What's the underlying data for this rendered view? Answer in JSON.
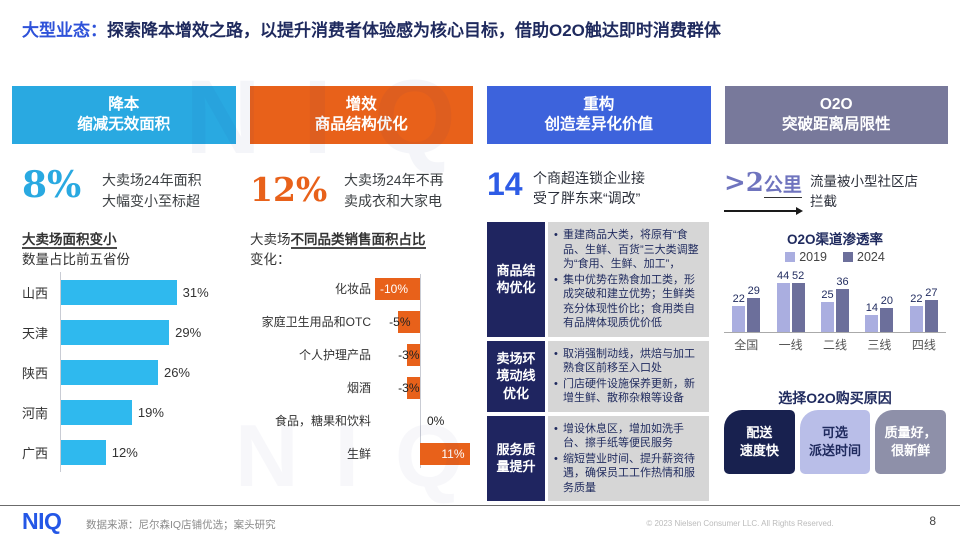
{
  "watermark": "NIQ",
  "title": {
    "prefix": "大型业态：",
    "text": "探索降本增效之路，以提升消费者体验感为核心目标，借助O2O触达即时消费群体"
  },
  "pillars": [
    {
      "line1": "降本",
      "line2": "缩减无效面积",
      "color": "#29A9E1"
    },
    {
      "line1": "增效",
      "line2": "商品结构优化",
      "color": "#E8611A"
    },
    {
      "line1": "重构",
      "line2": "创造差异化价值",
      "color": "#3D63DC"
    },
    {
      "line1": "O2O",
      "line2": "突破距离局限性",
      "color": "#78799B"
    }
  ],
  "col_cost": {
    "stat": "8%",
    "desc_line1": "大卖场24年面积",
    "desc_line2": "大幅变小至标超",
    "chart_title_bold": "大卖场面积变小",
    "chart_title_rest": "数量占比前五省份"
  },
  "col_efficiency": {
    "stat": "12%",
    "desc_line1": "大卖场24年不再",
    "desc_line2": "卖成衣和大家电",
    "intro_prefix": "大卖场",
    "intro_bold": "不同品类销售面积占比",
    "intro_suffix": "变化："
  },
  "col_restructure": {
    "stat": "14",
    "desc_line1": "个商超连锁企业接",
    "desc_line2": "受了胖东来“调改”",
    "blocks": [
      {
        "label": "商品结构优化",
        "bullets": [
          "重建商品大类，将原有“食品、生鲜、百货”三大类调整为“食用、生鲜、加工”，",
          "集中优势在熟食加工类，形成突破和建立优势；生鲜类充分体现性价比；食用类自有品牌体现质优价低"
        ]
      },
      {
        "label": "卖场环境动线优化",
        "bullets": [
          "取消强制动线，烘焙与加工熟食区前移至入口处",
          "门店硬件设施保养更新，新增生鲜、散称杂粮等设备"
        ]
      },
      {
        "label": "服务质量提升",
        "bullets": [
          "增设休息区，增加如洗手台、擦手纸等便民服务",
          "缩短营业时间、提升薪资待遇，确保员工工作热情和服务质量"
        ]
      }
    ]
  },
  "col_o2o": {
    "stat_gt": ">2",
    "stat_unit": "公里",
    "desc_line1": "流量被小型社区店",
    "desc_line2": "拦截",
    "chart_title": "O2O渠道渗透率",
    "reasons_title": "选择O2O购买原因",
    "reasons": [
      {
        "line1": "配送",
        "line2": "速度快",
        "bg": "#18214F",
        "fg": "#FFFFFF"
      },
      {
        "line1": "可选",
        "line2": "派送时间",
        "bg": "#B9BEE8",
        "fg": "#1F2A5E"
      },
      {
        "line1": "质量好，",
        "line2": "很新鲜",
        "bg": "#8E90A9",
        "fg": "#FFFFFF"
      }
    ]
  },
  "chart_data": [
    {
      "type": "bar",
      "orientation": "horizontal",
      "title": "大卖场面积变小 数量占比前五省份",
      "categories": [
        "山西",
        "天津",
        "陕西",
        "河南",
        "广西"
      ],
      "values": [
        31,
        29,
        26,
        19,
        12
      ],
      "unit": "%",
      "bar_color": "#2FB9EE",
      "xlim": [
        0,
        35
      ],
      "grid": false
    },
    {
      "type": "bar",
      "orientation": "horizontal-diverging",
      "title": "大卖场不同品类销售面积占比变化",
      "categories": [
        "化妆品",
        "家庭卫生用品和OTC",
        "个人护理产品",
        "烟酒",
        "食品，糖果和饮料",
        "生鲜"
      ],
      "values": [
        -10,
        -5,
        -3,
        -3,
        0,
        11
      ],
      "unit": "%",
      "bar_color": "#E8611A",
      "xlim": [
        -12,
        12
      ],
      "grid": false
    },
    {
      "type": "bar",
      "orientation": "vertical-grouped",
      "title": "O2O渠道渗透率",
      "categories": [
        "全国",
        "一线",
        "二线",
        "三线",
        "四线"
      ],
      "series": [
        {
          "name": "2019",
          "color": "#AAAEE0",
          "values": [
            22,
            44,
            25,
            14,
            22
          ]
        },
        {
          "name": "2024",
          "color": "#6C6F9B",
          "values": [
            29,
            52,
            36,
            20,
            27
          ]
        }
      ],
      "ylim": [
        0,
        55
      ],
      "legend_position": "top",
      "grid": false
    }
  ],
  "footer": {
    "logo": "NIQ",
    "source": "数据来源：尼尔森IQ店铺优选；案头研究",
    "copyright": "© 2023 Nielsen Consumer LLC. All Rights Reserved.",
    "page": "8"
  }
}
